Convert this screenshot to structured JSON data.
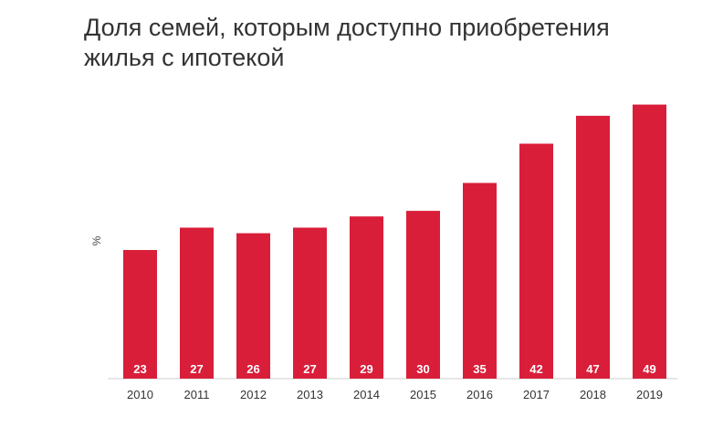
{
  "chart_data": {
    "type": "bar",
    "title": "Доля семей, которым доступно приобретения жилья с ипотекой",
    "ylabel": "%",
    "xlabel": "",
    "categories": [
      "2010",
      "2011",
      "2012",
      "2013",
      "2014",
      "2015",
      "2016",
      "2017",
      "2018",
      "2019"
    ],
    "values": [
      23,
      27,
      26,
      27,
      29,
      30,
      35,
      42,
      47,
      49
    ],
    "ylim": [
      0,
      50
    ],
    "grid": false,
    "legend": "none",
    "bar_color": "#d91e3a",
    "data_labels": "inside-bottom"
  }
}
